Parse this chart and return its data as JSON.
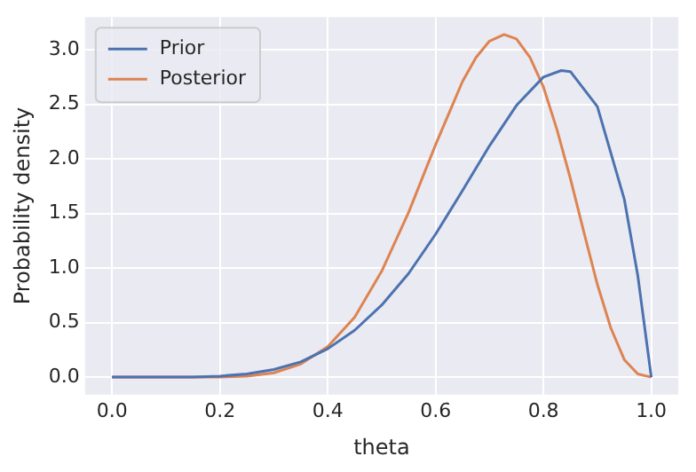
{
  "chart_data": {
    "type": "line",
    "xlabel": "theta",
    "ylabel": "Probability density",
    "xlim": [
      -0.05,
      1.05
    ],
    "ylim": [
      -0.16,
      3.3
    ],
    "xticks": [
      {
        "value": 0,
        "label": "0.0"
      },
      {
        "value": 0.2,
        "label": "0.2"
      },
      {
        "value": 0.4,
        "label": "0.4"
      },
      {
        "value": 0.6,
        "label": "0.6"
      },
      {
        "value": 0.8,
        "label": "0.8"
      },
      {
        "value": 1,
        "label": "1.0"
      }
    ],
    "yticks": [
      {
        "value": 0,
        "label": "0.0"
      },
      {
        "value": 0.5,
        "label": "0.5"
      },
      {
        "value": 1,
        "label": "1.0"
      },
      {
        "value": 1.5,
        "label": "1.5"
      },
      {
        "value": 2,
        "label": "2.0"
      },
      {
        "value": 2.5,
        "label": "2.5"
      },
      {
        "value": 3,
        "label": "3.0"
      }
    ],
    "grid": true,
    "legend": "top left",
    "marker": "none",
    "line_style": "solid",
    "series": [
      {
        "name": "Prior",
        "color": "#4c72b0",
        "x": [
          0,
          0.1,
          0.15,
          0.2,
          0.25,
          0.3,
          0.35,
          0.4,
          0.45,
          0.5,
          0.55,
          0.6,
          0.65,
          0.7,
          0.75,
          0.8,
          0.833,
          0.85,
          0.9,
          0.95,
          0.975,
          1
        ],
        "values": [
          0,
          0,
          0,
          0.01,
          0.03,
          0.07,
          0.14,
          0.26,
          0.43,
          0.66,
          0.95,
          1.31,
          1.71,
          2.12,
          2.49,
          2.75,
          2.81,
          2.8,
          2.48,
          1.63,
          0.93,
          0
        ]
      },
      {
        "name": "Posterior",
        "color": "#dd8452",
        "x": [
          0,
          0.1,
          0.2,
          0.25,
          0.3,
          0.35,
          0.4,
          0.45,
          0.5,
          0.55,
          0.6,
          0.65,
          0.675,
          0.7,
          0.727,
          0.75,
          0.775,
          0.8,
          0.825,
          0.85,
          0.875,
          0.9,
          0.925,
          0.95,
          0.975,
          1
        ],
        "values": [
          0,
          0,
          0,
          0.01,
          0.04,
          0.12,
          0.28,
          0.55,
          0.97,
          1.51,
          2.13,
          2.71,
          2.93,
          3.08,
          3.14,
          3.1,
          2.93,
          2.66,
          2.27,
          1.82,
          1.33,
          0.85,
          0.45,
          0.16,
          0.03,
          0
        ]
      }
    ]
  }
}
